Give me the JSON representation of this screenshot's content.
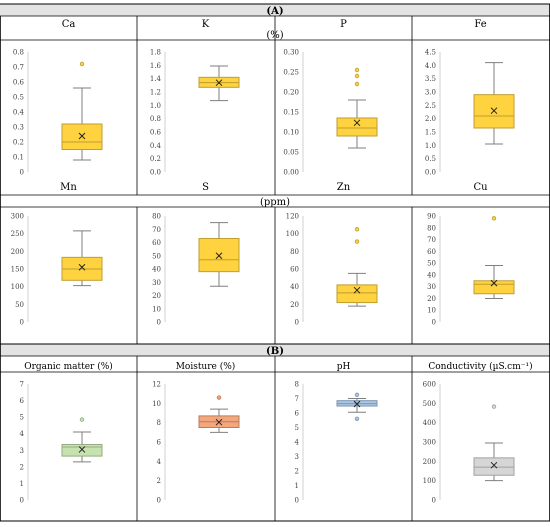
{
  "sections": [
    {
      "label": "(A)"
    },
    {
      "label": "(B)"
    }
  ],
  "unit_labels": {
    "percent": "(%)",
    "ppm": "(ppm)"
  },
  "chart_data": [
    {
      "type": "box",
      "title": "Ca",
      "ylim": [
        0,
        0.8
      ],
      "yticks": [
        "0",
        "0.1",
        "0.2",
        "0.3",
        "0.4",
        "0.5",
        "0.6",
        "0.7",
        "0.8"
      ],
      "whisker_low": 0.08,
      "q1": 0.15,
      "median": 0.2,
      "q3": 0.32,
      "whisker_high": 0.56,
      "mean": 0.24,
      "outliers": [
        0.72
      ],
      "fill": "#FFD23F"
    },
    {
      "type": "box",
      "title": "K",
      "ylim": [
        0,
        1.8
      ],
      "yticks": [
        "0.0",
        "0.2",
        "0.4",
        "0.6",
        "0.8",
        "1.0",
        "1.2",
        "1.4",
        "1.6",
        "1.8"
      ],
      "whisker_low": 1.07,
      "q1": 1.27,
      "median": 1.34,
      "q3": 1.42,
      "whisker_high": 1.59,
      "mean": 1.34,
      "outliers": [],
      "fill": "#FFD23F"
    },
    {
      "type": "box",
      "title": "P",
      "ylim": [
        0,
        0.3
      ],
      "yticks": [
        "0.00",
        "0.05",
        "0.10",
        "0.15",
        "0.20",
        "0.25",
        "0.30"
      ],
      "whisker_low": 0.06,
      "q1": 0.09,
      "median": 0.11,
      "q3": 0.135,
      "whisker_high": 0.18,
      "mean": 0.123,
      "outliers": [
        0.22,
        0.24,
        0.255
      ],
      "fill": "#FFD23F"
    },
    {
      "type": "box",
      "title": "Fe",
      "ylim": [
        0,
        4.5
      ],
      "yticks": [
        "0.0",
        "0.5",
        "1.0",
        "1.5",
        "2.0",
        "2.5",
        "3.0",
        "3.5",
        "4.0",
        "4.5"
      ],
      "whisker_low": 1.05,
      "q1": 1.65,
      "median": 2.1,
      "q3": 2.9,
      "whisker_high": 4.1,
      "mean": 2.3,
      "outliers": [],
      "fill": "#FFD23F"
    },
    {
      "type": "box",
      "title": "Mn",
      "ylim": [
        0,
        300
      ],
      "yticks": [
        "0",
        "50",
        "100",
        "150",
        "200",
        "250",
        "300"
      ],
      "whisker_low": 103,
      "q1": 118,
      "median": 150,
      "q3": 183,
      "whisker_high": 258,
      "mean": 155,
      "outliers": [],
      "fill": "#FFD23F"
    },
    {
      "type": "box",
      "title": "S",
      "ylim": [
        0,
        80
      ],
      "yticks": [
        "0",
        "10",
        "20",
        "30",
        "40",
        "50",
        "60",
        "70",
        "80"
      ],
      "whisker_low": 27,
      "q1": 38,
      "median": 47,
      "q3": 63,
      "whisker_high": 75,
      "mean": 50,
      "outliers": [],
      "fill": "#FFD23F"
    },
    {
      "type": "box",
      "title": "Zn",
      "ylim": [
        0,
        120
      ],
      "yticks": [
        "0",
        "20",
        "40",
        "60",
        "80",
        "100",
        "120"
      ],
      "whisker_low": 18,
      "q1": 22,
      "median": 33,
      "q3": 42,
      "whisker_high": 55,
      "mean": 36,
      "outliers": [
        91,
        105
      ],
      "fill": "#FFD23F"
    },
    {
      "type": "box",
      "title": "Cu",
      "ylim": [
        0,
        90
      ],
      "yticks": [
        "0",
        "10",
        "20",
        "30",
        "40",
        "50",
        "60",
        "70",
        "80",
        "90"
      ],
      "whisker_low": 20,
      "q1": 24,
      "median": 32,
      "q3": 35,
      "whisker_high": 48,
      "mean": 33,
      "outliers": [
        88
      ],
      "fill": "#FFD23F"
    },
    {
      "type": "box",
      "title": "Organic matter (%)",
      "ylim": [
        0,
        7
      ],
      "yticks": [
        "0",
        "1",
        "2",
        "3",
        "4",
        "5",
        "6",
        "7"
      ],
      "whisker_low": 2.3,
      "q1": 2.65,
      "median": 3.2,
      "q3": 3.35,
      "whisker_high": 4.1,
      "mean": 3.05,
      "outliers": [
        4.85
      ],
      "fill": "#C6E2AE"
    },
    {
      "type": "box",
      "title": "Moisture (%)",
      "ylim": [
        0,
        12
      ],
      "yticks": [
        "0",
        "2",
        "4",
        "6",
        "8",
        "10",
        "12"
      ],
      "whisker_low": 7.0,
      "q1": 7.5,
      "median": 8.1,
      "q3": 8.7,
      "whisker_high": 9.4,
      "mean": 8.05,
      "outliers": [
        10.6
      ],
      "fill": "#F4A77D"
    },
    {
      "type": "box",
      "title": "pH",
      "ylim": [
        0,
        8
      ],
      "yticks": [
        "0",
        "1",
        "2",
        "3",
        "4",
        "5",
        "6",
        "7",
        "8"
      ],
      "whisker_low": 6.05,
      "q1": 6.48,
      "median": 6.65,
      "q3": 6.85,
      "whisker_high": 7.0,
      "mean": 6.62,
      "outliers": [
        5.6,
        7.25
      ],
      "fill": "#A9C7E6"
    },
    {
      "type": "box",
      "title": "Conductivity (µS.cm⁻¹)",
      "ylim": [
        0,
        600
      ],
      "yticks": [
        "0",
        "100",
        "200",
        "300",
        "400",
        "500",
        "600"
      ],
      "whisker_low": 100,
      "q1": 128,
      "median": 170,
      "q3": 218,
      "whisker_high": 295,
      "mean": 180,
      "outliers": [
        483
      ],
      "fill": "#D6D6D6"
    }
  ]
}
